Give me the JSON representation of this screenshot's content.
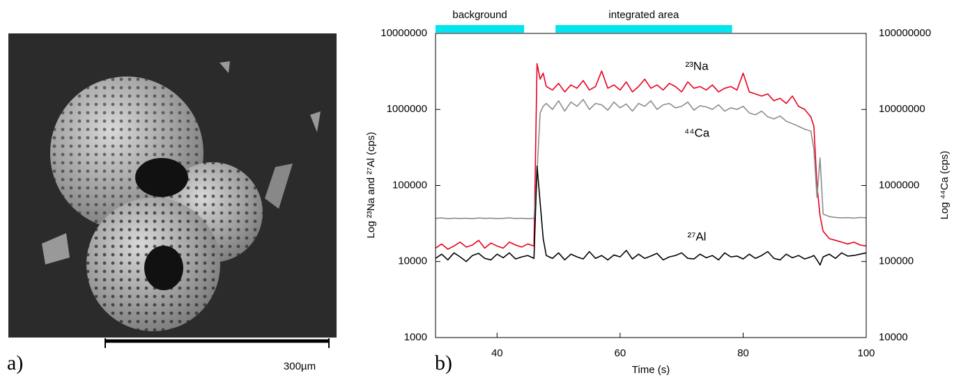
{
  "image_panel": {
    "label": "a)",
    "scale_bar_label": "300µm"
  },
  "chart_data": {
    "type": "line",
    "panel_label": "b)",
    "xlabel": "Time (s)",
    "ylabel": "Log ²³Na and ²⁷Al (cps)",
    "y2label": "Log ⁴⁴Ca (cps)",
    "yscale": "log",
    "y2scale": "log",
    "xlim": [
      30,
      100
    ],
    "xticks": [
      40,
      60,
      80,
      100
    ],
    "ylim": [
      1000,
      10000000
    ],
    "yticks": [
      1000,
      10000,
      100000,
      1000000,
      10000000
    ],
    "y2lim": [
      10000,
      100000000
    ],
    "y2ticks": [
      10000,
      100000,
      1000000,
      10000000,
      100000000
    ],
    "regions": [
      {
        "label": "background",
        "start": 30,
        "end": 44.4,
        "color": "#00e5ee"
      },
      {
        "label": "integrated area",
        "start": 49.5,
        "end": 78.2,
        "color": "#00e5ee"
      }
    ],
    "x": [
      30,
      31,
      32,
      33,
      34,
      35,
      36,
      37,
      38,
      39,
      40,
      41,
      42,
      43,
      44,
      45,
      46,
      46.5,
      47,
      47.5,
      48,
      49,
      50,
      51,
      52,
      53,
      54,
      55,
      56,
      57,
      58,
      59,
      60,
      61,
      62,
      63,
      64,
      65,
      66,
      67,
      68,
      69,
      70,
      71,
      72,
      73,
      74,
      75,
      76,
      77,
      78,
      79,
      80,
      81,
      82,
      83,
      84,
      85,
      86,
      87,
      88,
      89,
      90,
      91,
      91.5,
      92,
      92.5,
      93,
      94,
      95,
      96,
      97,
      98,
      99,
      100
    ],
    "series": [
      {
        "name": "²³Na",
        "color": "#e8001c",
        "axis": "y",
        "values": [
          15000,
          17000,
          14500,
          16000,
          18000,
          15500,
          16500,
          19000,
          15000,
          17500,
          16000,
          15000,
          18000,
          16500,
          15500,
          17000,
          16000,
          4000000,
          2500000,
          3000000,
          2000000,
          1800000,
          2200000,
          1700000,
          2100000,
          1900000,
          2400000,
          1800000,
          2000000,
          3200000,
          1900000,
          2100000,
          1800000,
          2300000,
          1700000,
          2000000,
          2500000,
          1900000,
          2100000,
          1800000,
          2200000,
          2000000,
          1700000,
          2300000,
          1900000,
          2000000,
          1800000,
          2100000,
          1700000,
          1900000,
          2000000,
          1800000,
          3000000,
          1700000,
          1600000,
          1500000,
          1600000,
          1300000,
          1400000,
          1200000,
          1500000,
          1100000,
          1000000,
          800000,
          600000,
          100000,
          40000,
          25000,
          20000,
          19000,
          18000,
          17000,
          18000,
          16500,
          16000
        ]
      },
      {
        "name": "⁴⁴Ca",
        "color": "#8c8c8c",
        "axis": "y2",
        "values": [
          370000,
          375000,
          365000,
          372000,
          368000,
          371000,
          366000,
          374000,
          369000,
          372000,
          367000,
          370000,
          375000,
          368000,
          371000,
          366000,
          369000,
          1500000,
          9000000,
          11000000,
          12000000,
          10000000,
          13000000,
          9500000,
          12500000,
          11000000,
          13500000,
          10000000,
          12000000,
          11500000,
          9800000,
          12500000,
          10500000,
          11800000,
          9500000,
          12000000,
          11000000,
          13000000,
          10000000,
          11500000,
          12000000,
          10500000,
          11000000,
          12500000,
          9800000,
          11200000,
          10800000,
          10000000,
          11500000,
          9500000,
          10500000,
          10000000,
          11000000,
          9000000,
          8500000,
          9500000,
          8000000,
          7500000,
          8200000,
          7000000,
          6500000,
          6000000,
          5500000,
          5200000,
          3000000,
          700000,
          2300000,
          420000,
          390000,
          380000,
          375000,
          378000,
          372000,
          380000,
          376000
        ]
      },
      {
        "name": "²⁷Al",
        "color": "#000000",
        "axis": "y",
        "values": [
          11000,
          12500,
          10500,
          13000,
          11500,
          10000,
          12000,
          12800,
          11000,
          10500,
          12500,
          11200,
          13000,
          10800,
          11500,
          12000,
          11000,
          180000,
          60000,
          20000,
          12000,
          11000,
          13000,
          10500,
          12500,
          11500,
          10800,
          13500,
          11000,
          12000,
          10500,
          12200,
          11500,
          14000,
          10800,
          12500,
          11000,
          11800,
          12800,
          10500,
          11500,
          12000,
          13000,
          11000,
          10800,
          12500,
          11200,
          12000,
          10500,
          13000,
          11500,
          11800,
          10800,
          12500,
          11000,
          12000,
          13500,
          11000,
          10500,
          12500,
          11200,
          12000,
          10800,
          11500,
          12000,
          10500,
          9000,
          11500,
          12500,
          11000,
          13000,
          11800,
          12000,
          12500,
          13000
        ]
      }
    ]
  }
}
